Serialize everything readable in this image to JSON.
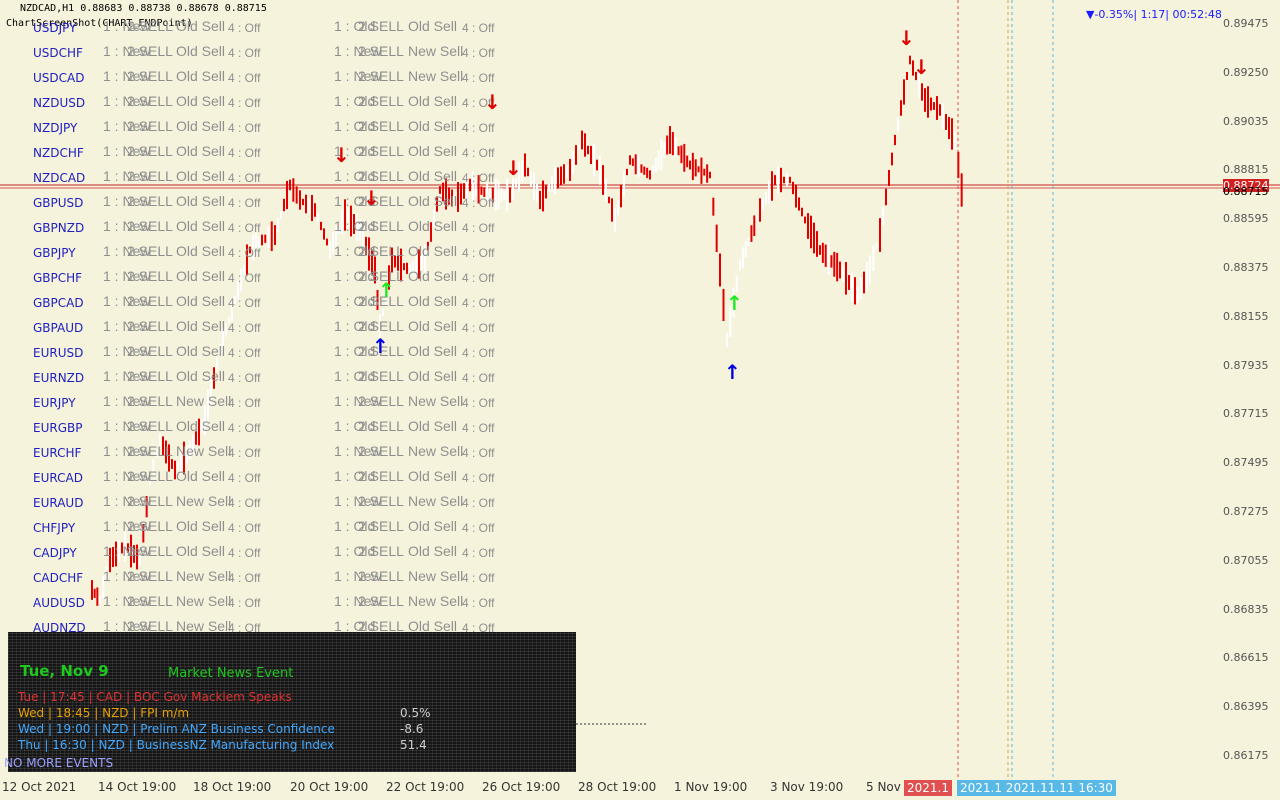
{
  "chart": {
    "title": "NZDCAD,H1  0.88683 0.88738 0.88678 0.88715",
    "subtitle": "ChartScreenShot(CHART_ENDPoint)",
    "top_right": "▼-0.35%| 1:17| 00:52:48",
    "current_price_labels": [
      "0.88724",
      "0.88715"
    ]
  },
  "colors": {
    "background": "#f6f3dc",
    "down_candle": "#e00000",
    "up_candle": "#ffffff",
    "pair_text": "#2020c0",
    "cell_text": "#8f8f8f",
    "sell_arrow": "#e00000",
    "buy_arrow_green": "#1ee81e",
    "buy_arrow_blue": "#0000e0"
  },
  "pairs": [
    "USDJPY",
    "USDCHF",
    "USDCAD",
    "NZDUSD",
    "NZDJPY",
    "NZDCHF",
    "NZDCAD",
    "GBPUSD",
    "GBPNZD",
    "GBPJPY",
    "GBPCHF",
    "GBPCAD",
    "GBPAUD",
    "EURUSD",
    "EURNZD",
    "EURJPY",
    "EURGBP",
    "EURCHF",
    "EURCAD",
    "EURAUD",
    "CHFJPY",
    "CADJPY",
    "CADCHF",
    "AUDUSD",
    "AUDNZD"
  ],
  "grid": {
    "col1": [
      "1 : New",
      "1 : New",
      "1 : New",
      "1 : New",
      "1 : New",
      "1 : New",
      "1 : New",
      "1 : New",
      "1 : New",
      "1 : New",
      "1 : New",
      "1 : New",
      "1 : New",
      "1 : New",
      "1 : New",
      "1 : New",
      "1 : New",
      "1 : New",
      "1 : New",
      "1 : New",
      "1 : New",
      "1 : New",
      "1 : New",
      "1 : New",
      "1 : New"
    ],
    "col2": [
      "2 SELL",
      "2 SELL",
      "2 SELL",
      "2 SELL",
      "2 SELL",
      "2 SELL",
      "2 SELL",
      "2 SELL",
      "2 SELL",
      "2 SELL",
      "2 SELL",
      "2 SELL",
      "2 SELL",
      "2 SELL",
      "2 SELL",
      "2 SELL",
      "2 SELL",
      "2 SELL",
      "2 SELL",
      "2 SELL",
      "2 SELL",
      "2 SELL",
      "2 SELL",
      "2 SELL",
      "2 SELL"
    ],
    "col3": [
      "Old Sell",
      "Old Sell",
      "Old Sell",
      "Old Sell",
      "Old Sell",
      "Old Sell",
      "Old Sell",
      "Old Sell",
      "Old Sell",
      "Old Sell",
      "Old Sell",
      "Old Sell",
      "Old Sell",
      "Old Sell",
      "Old Sell",
      "New Sell",
      "Old Sell",
      "New Sell",
      "Old Sell",
      "New Sell",
      "Old Sell",
      "Old Sell",
      "New Sell",
      "New Sell",
      "New Sell"
    ],
    "col4": [
      "4 : Off",
      "4 : Off",
      "4 : Off",
      "4 : Off",
      "4 : Off",
      "4 : Off",
      "4 : Off",
      "4 : Off",
      "4 : Off",
      "4 : Off",
      "4 : Off",
      "4 : Off",
      "4 : Off",
      "4 : Off",
      "4 : Off",
      "4 : Off",
      "4 : Off",
      "4 : Off",
      "4 : Off",
      "4 : Off",
      "4 : Off",
      "4 : Off",
      "4 : Off",
      "4 : Off",
      "4 : Off"
    ],
    "col5": [
      "1 : Old",
      "1 : New",
      "1 : New",
      "1 : Old",
      "1 : Old",
      "1 : Old",
      "1 : Old",
      "1 : Old",
      "1 : Old",
      "1 : Old",
      "1 : Old",
      "1 : Old",
      "1 : Old",
      "1 : Old",
      "1 : Old",
      "1 : New",
      "1 : Old",
      "1 : New",
      "1 : Old",
      "1 : New",
      "1 : Old",
      "1 : Old",
      "1 : New",
      "1 : New",
      "1 : Old"
    ],
    "col6": [
      "2 SELL",
      "2 SELL",
      "2 SELL",
      "2 SELL",
      "2 SELL",
      "2 SELL",
      "2 SELL",
      "2 SELL",
      "2 SELL",
      "2 SELL",
      "2 SELL",
      "2 SELL",
      "2 SELL",
      "2 SELL",
      "2 SELL",
      "2 SELL",
      "2 SELL",
      "2 SELL",
      "2 SELL",
      "2 SELL",
      "2 SELL",
      "2 SELL",
      "2 SELL",
      "2 SELL",
      "2 SELL"
    ],
    "col7": [
      "Old Sell",
      "New Sell",
      "New Sell",
      "Old Sell",
      "Old Sell",
      "Old Sell",
      "Old Sell",
      "Old Sell",
      "Old Sell",
      "Old Sell",
      "Old Sell",
      "Old Sell",
      "Old Sell",
      "Old Sell",
      "Old Sell",
      "New Sell",
      "Old Sell",
      "New Sell",
      "Old Sell",
      "New Sell",
      "Old Sell",
      "Old Sell",
      "New Sell",
      "New Sell",
      "Old Sell"
    ],
    "col8": [
      "4 : Off",
      "4 : Off",
      "4 : Off",
      "4 : Off",
      "4 : Off",
      "4 : Off",
      "4 : Off",
      "4 : Off",
      "4 : Off",
      "4 : Off",
      "4 : Off",
      "4 : Off",
      "4 : Off",
      "4 : Off",
      "4 : Off",
      "4 : Off",
      "4 : Off",
      "4 : Off",
      "4 : Off",
      "4 : Off",
      "4 : Off",
      "4 : Off",
      "4 : Off",
      "4 : Off",
      "4 : Off"
    ]
  },
  "price_axis": [
    "0.89475",
    "0.89250",
    "0.89035",
    "0.88815",
    "0.88595",
    "0.88375",
    "0.88155",
    "0.87935",
    "0.87715",
    "0.87495",
    "0.87275",
    "0.87055",
    "0.86835",
    "0.86615",
    "0.86395",
    "0.86175"
  ],
  "time_axis": [
    "12 Oct 2021",
    "14 Oct 19:00",
    "18 Oct 19:00",
    "20 Oct 19:00",
    "22 Oct 19:00",
    "26 Oct 19:00",
    "28 Oct 19:00",
    "1 Nov 19:00",
    "3 Nov 19:00",
    "5 Nov"
  ],
  "time_tags": {
    "red": "2021.1",
    "blue": "2021.1 2021.11.11 16:30"
  },
  "news": {
    "title": "Tue, Nov 9",
    "subtitle": "Market News Event",
    "rows": [
      {
        "text": "Tue | 17:45 | CAD | BOC Gov Macklem Speaks",
        "color": "#e03030"
      },
      {
        "text": "Wed | 18:45 | NZD | FPI m/m",
        "color": "#e8a000"
      },
      {
        "text": "Wed | 19:00 | NZD | Prelim ANZ Business Confidence",
        "color": "#40a8ff"
      },
      {
        "text": "Thu | 16:30 | NZD | BusinessNZ Manufacturing Index",
        "color": "#40a8ff"
      }
    ],
    "values": [
      "0.5%",
      "-8.6",
      "51.4"
    ],
    "footer": "NO MORE EVENTS"
  }
}
